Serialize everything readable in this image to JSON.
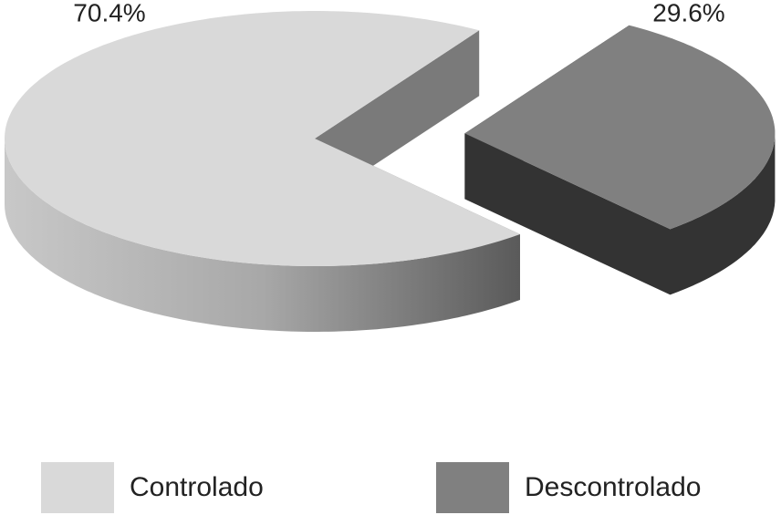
{
  "chart_data": {
    "type": "pie",
    "categories": [
      "Controlado",
      "Descontrolado"
    ],
    "values": [
      70.4,
      29.6
    ],
    "value_labels": [
      "70.4%",
      "29.6%"
    ],
    "colors": [
      "#d9d9d9",
      "#808080"
    ],
    "wall_colors": [
      "#9a9a9a",
      "#333333"
    ],
    "legend": "bottom"
  }
}
